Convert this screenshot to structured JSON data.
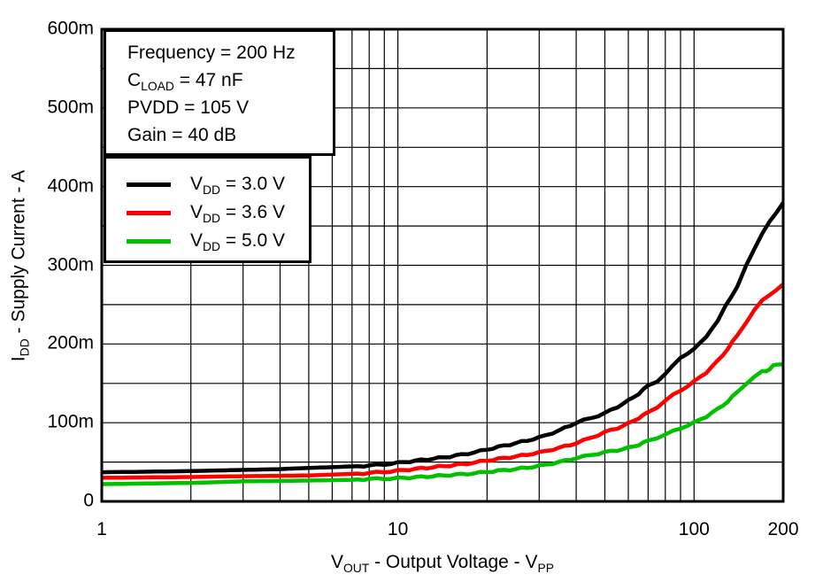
{
  "colors": {
    "background": "#ffffff",
    "axis_and_grid": "#000000",
    "text": "#000000",
    "series_black": "#000000",
    "series_red": "#ff0000",
    "series_green": "#00c000"
  },
  "chart_data": {
    "type": "line",
    "title": "",
    "x_scale": "log",
    "xlim": [
      1,
      200
    ],
    "ylim": [
      0,
      0.6
    ],
    "grid": "on",
    "legend_position": "top-left-inside",
    "xlabel_text": "VOUT - Output Voltage - VPP",
    "ylabel_text": "IDD - Supply Current - A",
    "xlabel_parts": [
      {
        "t": "V"
      },
      {
        "t": "OUT",
        "sub": true
      },
      {
        "t": " - Output Voltage - V"
      },
      {
        "t": "PP",
        "sub": true
      }
    ],
    "ylabel_parts": [
      {
        "t": "I"
      },
      {
        "t": "DD",
        "sub": true
      },
      {
        "t": " - Supply Current - A"
      }
    ],
    "x_ticks": [
      {
        "v": 1,
        "label": "1"
      },
      {
        "v": 10,
        "label": "10"
      },
      {
        "v": 100,
        "label": "100"
      },
      {
        "v": 200,
        "label": "200"
      }
    ],
    "y_ticks_mA": [
      {
        "v": 0,
        "label": "0"
      },
      {
        "v": 100,
        "label": "100m"
      },
      {
        "v": 200,
        "label": "200m"
      },
      {
        "v": 300,
        "label": "300m"
      },
      {
        "v": 400,
        "label": "400m"
      },
      {
        "v": 500,
        "label": "500m"
      },
      {
        "v": 600,
        "label": "600m"
      }
    ],
    "x_gridlines": [
      2,
      3,
      4,
      5,
      6,
      7,
      8,
      9,
      10,
      20,
      30,
      40,
      50,
      60,
      70,
      80,
      90,
      100
    ],
    "y_gridline_step_mA": 50,
    "annotation_lines": [
      [
        {
          "t": "Frequency = 200 Hz"
        }
      ],
      [
        {
          "t": "C"
        },
        {
          "t": "LOAD",
          "sub": true
        },
        {
          "t": " = 47 nF"
        }
      ],
      [
        {
          "t": "PVDD = 105 V"
        }
      ],
      [
        {
          "t": "Gain = 40 dB"
        }
      ]
    ],
    "legend": [
      {
        "color": "#000000",
        "parts": [
          {
            "t": "V"
          },
          {
            "t": "DD",
            "sub": true
          },
          {
            "t": " = 3.0 V"
          }
        ]
      },
      {
        "color": "#ff0000",
        "parts": [
          {
            "t": "V"
          },
          {
            "t": "DD",
            "sub": true
          },
          {
            "t": " = 3.6 V"
          }
        ]
      },
      {
        "color": "#00c000",
        "parts": [
          {
            "t": "V"
          },
          {
            "t": "DD",
            "sub": true
          },
          {
            "t": " = 5.0 V"
          }
        ]
      }
    ],
    "series": [
      {
        "name": "VDD = 3.0 V",
        "color": "#000000",
        "points_vpp_mA": [
          [
            1,
            37
          ],
          [
            2,
            38.5
          ],
          [
            3,
            40
          ],
          [
            4,
            41
          ],
          [
            5,
            42.5
          ],
          [
            6,
            43.5
          ],
          [
            7,
            44.5
          ],
          [
            8,
            45.5
          ],
          [
            9,
            47
          ],
          [
            10,
            49
          ],
          [
            12,
            52.5
          ],
          [
            15,
            57
          ],
          [
            18,
            62
          ],
          [
            20,
            66
          ],
          [
            25,
            74
          ],
          [
            30,
            81
          ],
          [
            35,
            90
          ],
          [
            40,
            100
          ],
          [
            45,
            106
          ],
          [
            50,
            112
          ],
          [
            55,
            120
          ],
          [
            60,
            128
          ],
          [
            65,
            137
          ],
          [
            70,
            147
          ],
          [
            75,
            153
          ],
          [
            80,
            162
          ],
          [
            85,
            172
          ],
          [
            90,
            183
          ],
          [
            100,
            193
          ],
          [
            110,
            210
          ],
          [
            120,
            228
          ],
          [
            128,
            250
          ],
          [
            140,
            272
          ],
          [
            150,
            300
          ],
          [
            160,
            322
          ],
          [
            170,
            340
          ],
          [
            180,
            355
          ],
          [
            190,
            368
          ],
          [
            200,
            380
          ]
        ]
      },
      {
        "name": "VDD = 3.6 V",
        "color": "#ff0000",
        "points_vpp_mA": [
          [
            1,
            30
          ],
          [
            2,
            31
          ],
          [
            3,
            32
          ],
          [
            4,
            32.5
          ],
          [
            5,
            33
          ],
          [
            6,
            34
          ],
          [
            7,
            35
          ],
          [
            8,
            36
          ],
          [
            9,
            37.5
          ],
          [
            10,
            39
          ],
          [
            12,
            42
          ],
          [
            15,
            45.5
          ],
          [
            18,
            49
          ],
          [
            20,
            52
          ],
          [
            25,
            57
          ],
          [
            30,
            62
          ],
          [
            35,
            68
          ],
          [
            40,
            74
          ],
          [
            45,
            81
          ],
          [
            50,
            88
          ],
          [
            55,
            93
          ],
          [
            60,
            99
          ],
          [
            65,
            106
          ],
          [
            70,
            113
          ],
          [
            75,
            120
          ],
          [
            80,
            128
          ],
          [
            85,
            135
          ],
          [
            90,
            141
          ],
          [
            100,
            152
          ],
          [
            110,
            164
          ],
          [
            120,
            178
          ],
          [
            130,
            194
          ],
          [
            140,
            211
          ],
          [
            150,
            228
          ],
          [
            160,
            243
          ],
          [
            170,
            255
          ],
          [
            180,
            263
          ],
          [
            190,
            269
          ],
          [
            200,
            275
          ]
        ]
      },
      {
        "name": "VDD = 5.0 V",
        "color": "#00c000",
        "points_vpp_mA": [
          [
            1,
            22
          ],
          [
            2,
            23.5
          ],
          [
            3,
            25.5
          ],
          [
            4,
            26
          ],
          [
            5,
            26.5
          ],
          [
            6,
            27
          ],
          [
            7,
            27.5
          ],
          [
            8,
            28.5
          ],
          [
            9,
            28.8
          ],
          [
            10,
            29.5
          ],
          [
            12,
            31
          ],
          [
            15,
            33.5
          ],
          [
            18,
            35.5
          ],
          [
            20,
            37.5
          ],
          [
            25,
            41
          ],
          [
            30,
            45
          ],
          [
            35,
            50
          ],
          [
            40,
            55
          ],
          [
            45,
            59
          ],
          [
            50,
            62.5
          ],
          [
            55,
            65
          ],
          [
            60,
            68
          ],
          [
            65,
            72
          ],
          [
            70,
            77
          ],
          [
            75,
            81
          ],
          [
            80,
            85
          ],
          [
            85,
            89
          ],
          [
            90,
            93
          ],
          [
            100,
            100
          ],
          [
            110,
            108
          ],
          [
            120,
            117
          ],
          [
            130,
            127
          ],
          [
            140,
            139
          ],
          [
            150,
            150
          ],
          [
            160,
            158
          ],
          [
            170,
            165
          ],
          [
            175,
            166
          ],
          [
            180,
            168
          ],
          [
            185,
            172
          ],
          [
            190,
            174
          ],
          [
            200,
            175
          ]
        ]
      }
    ]
  }
}
